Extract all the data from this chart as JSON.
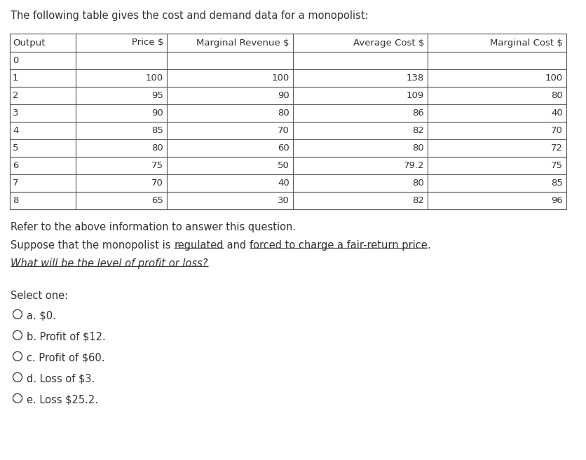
{
  "title": "The following table gives the cost and demand data for a monopolist:",
  "headers": [
    "Output",
    "Price $",
    "Marginal Revenue $",
    "Average Cost $",
    "Marginal Cost $"
  ],
  "rows": [
    [
      "0",
      "",
      "",
      "",
      ""
    ],
    [
      "1",
      "100",
      "100",
      "138",
      "100"
    ],
    [
      "2",
      "95",
      "90",
      "109",
      "80"
    ],
    [
      "3",
      "90",
      "80",
      "86",
      "40"
    ],
    [
      "4",
      "85",
      "70",
      "82",
      "70"
    ],
    [
      "5",
      "80",
      "60",
      "80",
      "72"
    ],
    [
      "6",
      "75",
      "50",
      "79.2",
      "75"
    ],
    [
      "7",
      "70",
      "40",
      "80",
      "85"
    ],
    [
      "8",
      "65",
      "30",
      "82",
      "96"
    ]
  ],
  "refer_text": "Refer to the above information to answer this question.",
  "suppose_seg1": "Suppose that the monopolist is ",
  "suppose_seg2": "regulated",
  "suppose_seg3": " and ",
  "suppose_seg4": "forced to charge a fair-return price",
  "suppose_seg5": ".",
  "question_text": "What will be the level of profit or loss?",
  "select_text": "Select one:",
  "options": [
    "a. $0.",
    "b. Profit of $12.",
    "c. Profit of $60.",
    "d. Loss of $3.",
    "e. Loss $25.2."
  ],
  "bg_color": "#ffffff",
  "text_color": "#333333",
  "table_line_color": "#555555",
  "font_size_title": 10.5,
  "font_size_table": 9.5,
  "font_size_body": 10.5
}
